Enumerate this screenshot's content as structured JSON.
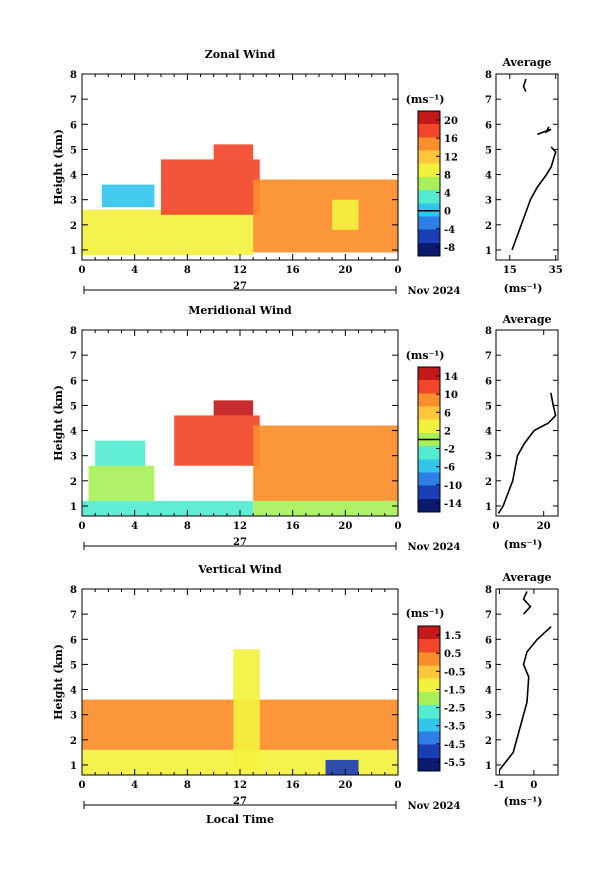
{
  "colors": {
    "colormap": [
      "#0a1a6e",
      "#1a3fb4",
      "#2f7ee8",
      "#33c6ea",
      "#54ecd0",
      "#a8f05a",
      "#f3f13e",
      "#fdc73c",
      "#fb8d2a",
      "#f2462a",
      "#c41a1a"
    ],
    "curve": "#000000",
    "background": "#ffffff"
  },
  "chart_data": [
    {
      "type": "heatmap",
      "title": "Zonal Wind",
      "xlabel": "",
      "ylabel": "Height (km)",
      "x_ticks": [
        "0",
        "4",
        "8",
        "12",
        "16",
        "20",
        "0"
      ],
      "y_ticks": [
        "1",
        "2",
        "3",
        "4",
        "5",
        "6",
        "7",
        "8"
      ],
      "xlim": [
        0,
        24
      ],
      "ylim": [
        0.6,
        8.0
      ],
      "date_label": "27",
      "date_right": "Nov 2024",
      "colorbar": {
        "unit": "(ms⁻¹)",
        "ticks": [
          "20",
          "16",
          "12",
          "8",
          "4",
          "0",
          "-4",
          "-8"
        ],
        "range": [
          -10,
          22
        ],
        "zero_line": 0
      },
      "regions": [
        {
          "x": [
            0,
            13
          ],
          "y": [
            0.8,
            2.6
          ],
          "value": 9
        },
        {
          "x": [
            1.5,
            5.5
          ],
          "y": [
            2.7,
            3.6
          ],
          "value": -1
        },
        {
          "x": [
            6,
            13.5
          ],
          "y": [
            2.4,
            4.6
          ],
          "value": 18
        },
        {
          "x": [
            10,
            13
          ],
          "y": [
            4.6,
            5.2
          ],
          "value": 19
        },
        {
          "x": [
            13,
            24
          ],
          "y": [
            0.9,
            3.8
          ],
          "value": 15
        },
        {
          "x": [
            19,
            21
          ],
          "y": [
            1.8,
            3.0
          ],
          "value": 8
        }
      ],
      "profile": {
        "title": "Average",
        "xlabel": "(ms⁻¹)",
        "x_ticks": [
          "15",
          "35"
        ],
        "xlim": [
          9,
          36
        ],
        "segments": [
          {
            "h": [
              1.0,
              1.5,
              2.0,
              2.5,
              3.0,
              3.5,
              4.0,
              4.3,
              4.6,
              4.9,
              5.1
            ],
            "v": [
              16,
              18,
              20,
              22,
              24,
              27,
              31,
              33,
              34,
              35,
              33
            ]
          },
          {
            "h": [
              5.6,
              5.7,
              5.8,
              5.7,
              5.9
            ],
            "v": [
              27,
              30,
              33,
              31,
              32
            ]
          },
          {
            "h": [
              7.3,
              7.5,
              7.8
            ],
            "v": [
              22,
              21,
              22
            ]
          }
        ]
      }
    },
    {
      "type": "heatmap",
      "title": "Meridional Wind",
      "xlabel": "",
      "ylabel": "Height (km)",
      "x_ticks": [
        "0",
        "4",
        "8",
        "12",
        "16",
        "20",
        "0"
      ],
      "y_ticks": [
        "1",
        "2",
        "3",
        "4",
        "5",
        "6",
        "7",
        "8"
      ],
      "xlim": [
        0,
        24
      ],
      "ylim": [
        0.6,
        8.0
      ],
      "date_label": "27",
      "date_right": "Nov 2024",
      "colorbar": {
        "unit": "(ms⁻¹)",
        "ticks": [
          "14",
          "10",
          "6",
          "2",
          "-2",
          "-6",
          "-10",
          "-14"
        ],
        "range": [
          -16,
          16
        ],
        "zero_line": 0
      },
      "regions": [
        {
          "x": [
            0,
            13
          ],
          "y": [
            0.6,
            1.2
          ],
          "value": -3
        },
        {
          "x": [
            0.5,
            5.5
          ],
          "y": [
            1.2,
            2.6
          ],
          "value": 1
        },
        {
          "x": [
            1,
            4.8
          ],
          "y": [
            2.6,
            3.6
          ],
          "value": -3
        },
        {
          "x": [
            7,
            13.5
          ],
          "y": [
            2.6,
            4.6
          ],
          "value": 13
        },
        {
          "x": [
            10,
            13
          ],
          "y": [
            4.6,
            5.2
          ],
          "value": 14
        },
        {
          "x": [
            13,
            24
          ],
          "y": [
            1.2,
            4.2
          ],
          "value": 8
        },
        {
          "x": [
            13,
            24
          ],
          "y": [
            0.6,
            1.2
          ],
          "value": 1
        }
      ],
      "profile": {
        "title": "Average",
        "xlabel": "(ms⁻¹)",
        "x_ticks": [
          "0",
          "20"
        ],
        "xlim": [
          0,
          26
        ],
        "segments": [
          {
            "h": [
              0.7,
              1.0,
              1.5,
              2.0,
              2.5,
              3.0,
              3.5,
              4.0,
              4.3,
              4.6,
              5.0,
              5.5
            ],
            "v": [
              1,
              3,
              5,
              7,
              8,
              9,
              12,
              16,
              22,
              25,
              24,
              23
            ]
          }
        ]
      }
    },
    {
      "type": "heatmap",
      "title": "Vertical Wind",
      "xlabel": "Local Time",
      "ylabel": "Height (km)",
      "x_ticks": [
        "0",
        "4",
        "8",
        "12",
        "16",
        "20",
        "0"
      ],
      "y_ticks": [
        "1",
        "2",
        "3",
        "4",
        "5",
        "6",
        "7",
        "8"
      ],
      "xlim": [
        0,
        24
      ],
      "ylim": [
        0.6,
        8.0
      ],
      "date_label": "27",
      "date_right": "Nov 2024",
      "colorbar": {
        "unit": "(ms⁻¹)",
        "ticks": [
          "1.5",
          "0.5",
          "-0.5",
          "-1.5",
          "-2.5",
          "-3.5",
          "-4.5",
          "-5.5"
        ],
        "range": [
          -6,
          2
        ],
        "zero_line": null
      },
      "regions": [
        {
          "x": [
            0,
            24
          ],
          "y": [
            0.6,
            1.6
          ],
          "value": -1.4
        },
        {
          "x": [
            0,
            24
          ],
          "y": [
            1.6,
            3.6
          ],
          "value": 0.3
        },
        {
          "x": [
            11.5,
            13.5
          ],
          "y": [
            0.8,
            5.6
          ],
          "value": -1.0
        },
        {
          "x": [
            18.5,
            21
          ],
          "y": [
            0.6,
            1.2
          ],
          "value": -4.8
        }
      ],
      "profile": {
        "title": "Average",
        "xlabel": "(ms⁻¹)",
        "x_ticks": [
          "-1",
          "0"
        ],
        "xlim": [
          -1.1,
          0.7
        ],
        "segments": [
          {
            "h": [
              0.8,
              1.5,
              2.5,
              3.5,
              4.5,
              5.0,
              5.5,
              6.0,
              6.5
            ],
            "v": [
              -1.0,
              -0.6,
              -0.4,
              -0.2,
              -0.15,
              -0.3,
              -0.2,
              0.1,
              0.5
            ]
          },
          {
            "h": [
              7.0,
              7.3,
              7.6,
              7.9
            ],
            "v": [
              -0.3,
              -0.1,
              -0.3,
              -0.2
            ]
          }
        ]
      }
    }
  ]
}
